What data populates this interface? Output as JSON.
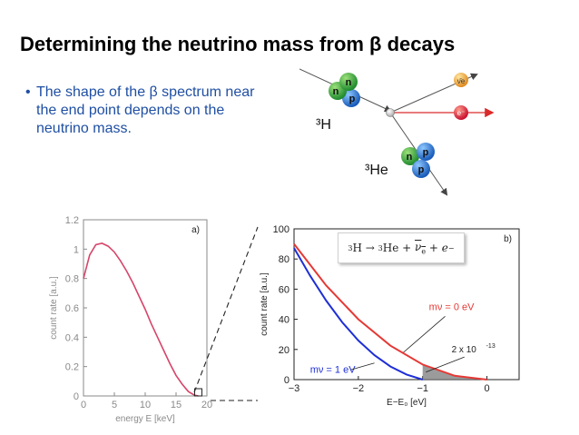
{
  "slide": {
    "title": "Determining the neutrino mass from β decays",
    "bullet": "The shape of the β spectrum near the end point depends on the neutrino mass."
  },
  "diagram": {
    "parent_label": "³H",
    "daughter_label": "³He",
    "nucleon_n": "n",
    "nucleon_p": "p",
    "antineutrino_label": "ν̄e",
    "electron_label": "e⁻",
    "colors": {
      "neutron": "#3cb043",
      "proton": "#2a7fd4",
      "electron": "#d92a2a",
      "antineutrino": "#e8a33a"
    }
  },
  "chart_data": [
    {
      "type": "line",
      "panel_label": "a)",
      "xlabel": "energy E  [keV]",
      "ylabel": "count rate  [a.u.]",
      "xlim": [
        0,
        20
      ],
      "ylim": [
        0,
        1.2
      ],
      "x_ticks": [
        "0",
        "5",
        "10",
        "15",
        "20"
      ],
      "y_ticks": [
        "0",
        "0.2",
        "0.4",
        "0.6",
        "0.8",
        "1",
        "1.2"
      ],
      "series": [
        {
          "x": [
            0,
            1,
            2,
            3,
            4,
            5,
            6,
            7,
            8,
            9,
            10,
            11,
            12,
            13,
            14,
            15,
            16,
            17,
            18,
            18.6
          ],
          "y": [
            0.8,
            0.96,
            1.03,
            1.04,
            1.02,
            0.98,
            0.92,
            0.85,
            0.77,
            0.68,
            0.59,
            0.49,
            0.4,
            0.31,
            0.22,
            0.14,
            0.08,
            0.03,
            0.005,
            0
          ]
        }
      ],
      "color": "#d6456a"
    },
    {
      "type": "line",
      "panel_label": "b)",
      "xlabel": "E−E₀  [eV]",
      "ylabel": "count rate  [a.u.]",
      "xlim": [
        -3,
        0.5
      ],
      "ylim": [
        0,
        100
      ],
      "x_ticks": [
        "−3",
        "−2",
        "−1",
        "0"
      ],
      "y_ticks": [
        "0",
        "20",
        "40",
        "60",
        "80",
        "100"
      ],
      "series": [
        {
          "name": "mν = 0 eV",
          "color": "#e53935",
          "x": [
            -3,
            -2.5,
            -2,
            -1.5,
            -1,
            -0.5,
            0
          ],
          "y": [
            90,
            62.5,
            40,
            22.5,
            10,
            2.5,
            0
          ]
        },
        {
          "name": "mν = 1 eV",
          "color": "#1e2fd6",
          "x": [
            -3,
            -2.75,
            -2.5,
            -2.25,
            -2,
            -1.75,
            -1.5,
            -1.25,
            -1
          ],
          "y": [
            87.3,
            68.9,
            52.4,
            38,
            25.9,
            16.2,
            8.7,
            3.4,
            0
          ]
        }
      ],
      "annotation": "2 x 10",
      "annotation_exponent": "-13",
      "equation": {
        "lhs": "H",
        "arrow": "→",
        "he": "He",
        "plus1": "+",
        "nu": "ν",
        "nu_sub": "e",
        "plus2": "+",
        "e": "e",
        "e_sup": "−",
        "three": "3"
      }
    }
  ]
}
